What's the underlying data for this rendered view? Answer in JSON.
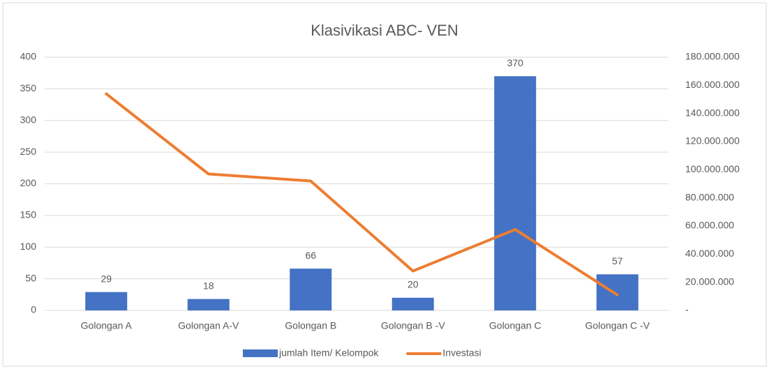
{
  "chart_data": {
    "type": "bar-line",
    "title": "Klasivikasi  ABC- VEN",
    "categories": [
      "Golongan A",
      "Golongan A-V",
      "Golongan B",
      "Golongan B -V",
      "Golongan C",
      "Golongan C -V"
    ],
    "series": [
      {
        "name": "jumlah Item/ Kelompok",
        "type": "bar",
        "color": "#4472c4",
        "values": [
          29,
          18,
          66,
          20,
          370,
          57
        ]
      },
      {
        "name": "Investasi",
        "type": "line",
        "axis": "y2",
        "color": "#ed7d31",
        "values": [
          154000000,
          97000000,
          92000000,
          28000000,
          57500000,
          11000000
        ]
      }
    ],
    "ylim": [
      0,
      400
    ],
    "yticks": [
      0,
      50,
      100,
      150,
      200,
      250,
      300,
      350,
      400
    ],
    "y2lim": [
      0,
      180000000
    ],
    "y2ticks": [
      {
        "value": 0,
        "label": "-"
      },
      {
        "value": 20000000,
        "label": "20.000.000"
      },
      {
        "value": 40000000,
        "label": "40.000.000"
      },
      {
        "value": 60000000,
        "label": "60.000.000"
      },
      {
        "value": 80000000,
        "label": "80.000.000"
      },
      {
        "value": 100000000,
        "label": "100.000.000"
      },
      {
        "value": 120000000,
        "label": "120.000.000"
      },
      {
        "value": 140000000,
        "label": "140.000.000"
      },
      {
        "value": 160000000,
        "label": "160.000.000"
      },
      {
        "value": 180000000,
        "label": "180.000.000"
      }
    ],
    "grid": true,
    "legend": "bottom"
  }
}
